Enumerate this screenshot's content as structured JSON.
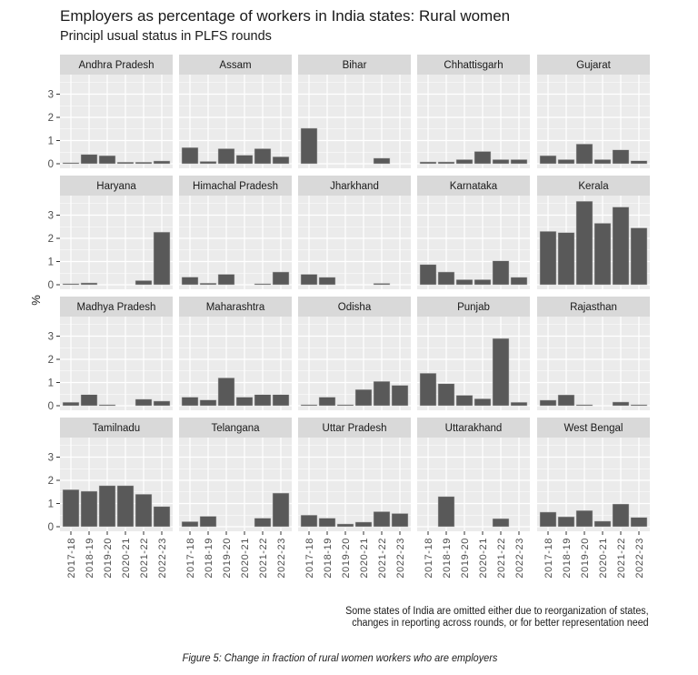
{
  "figure": {
    "title": "Employers as percentage of workers in India states: Rural women",
    "subtitle": "Principl usual status in PLFS rounds",
    "note_lines": [
      "Some states of India are omitted either due to reorganization of states,",
      "changes in reporting across rounds, or for better representation need"
    ],
    "caption": "Figure 5:  Change in fraction of rural women workers who are employers"
  },
  "chart_data": {
    "type": "bar",
    "layout": "facet-grid 4 rows x 5 columns",
    "title": "Employers as percentage of workers in India states: Rural women",
    "subtitle": "Principl usual status in PLFS rounds",
    "xlabel": "",
    "ylabel": "%",
    "ylim": [
      0,
      3.7
    ],
    "yticks": [
      0,
      1,
      2,
      3
    ],
    "grid": true,
    "categories": [
      "2017-18",
      "2018-19",
      "2019-20",
      "2020-21",
      "2021-22",
      "2022-23"
    ],
    "panels": [
      {
        "name": "Andhra Pradesh",
        "values": [
          0.03,
          0.4,
          0.35,
          0.07,
          0.07,
          0.12
        ]
      },
      {
        "name": "Assam",
        "values": [
          0.7,
          0.1,
          0.65,
          0.37,
          0.65,
          0.3
        ]
      },
      {
        "name": "Bihar",
        "values": [
          1.53,
          0,
          0,
          0,
          0.24,
          0
        ]
      },
      {
        "name": "Chhattisgarh",
        "values": [
          0.08,
          0.08,
          0.18,
          0.53,
          0.18,
          0.18
        ]
      },
      {
        "name": "Gujarat",
        "values": [
          0.35,
          0.18,
          0.85,
          0.18,
          0.6,
          0.13
        ]
      },
      {
        "name": "Haryana",
        "values": [
          0.03,
          0.08,
          0,
          0,
          0.18,
          2.27
        ]
      },
      {
        "name": "Himachal Pradesh",
        "values": [
          0.33,
          0.07,
          0.45,
          0,
          0.03,
          0.55
        ]
      },
      {
        "name": "Jharkhand",
        "values": [
          0.45,
          0.32,
          0,
          0,
          0.06,
          0
        ]
      },
      {
        "name": "Karnataka",
        "values": [
          0.87,
          0.55,
          0.22,
          0.22,
          1.03,
          0.32
        ]
      },
      {
        "name": "Kerala",
        "values": [
          2.3,
          2.25,
          3.6,
          2.65,
          3.35,
          2.45
        ]
      },
      {
        "name": "Madhya Pradesh",
        "values": [
          0.15,
          0.48,
          0.03,
          0,
          0.28,
          0.2
        ]
      },
      {
        "name": "Maharashtra",
        "values": [
          0.37,
          0.25,
          1.2,
          0.37,
          0.48,
          0.48
        ]
      },
      {
        "name": "Odisha",
        "values": [
          0.03,
          0.37,
          0.03,
          0.7,
          1.05,
          0.88
        ]
      },
      {
        "name": "Punjab",
        "values": [
          1.4,
          0.95,
          0.45,
          0.3,
          2.9,
          0.15
        ]
      },
      {
        "name": "Rajasthan",
        "values": [
          0.24,
          0.47,
          0.03,
          0,
          0.16,
          0.03
        ]
      },
      {
        "name": "Tamilnadu",
        "values": [
          1.6,
          1.53,
          1.77,
          1.77,
          1.4,
          0.87
        ]
      },
      {
        "name": "Telangana",
        "values": [
          0.22,
          0.45,
          0,
          0,
          0.37,
          1.45
        ]
      },
      {
        "name": "Uttar Pradesh",
        "values": [
          0.5,
          0.37,
          0.12,
          0.2,
          0.65,
          0.57
        ]
      },
      {
        "name": "Uttarakhand",
        "values": [
          0,
          1.3,
          0,
          0,
          0.35,
          0
        ]
      },
      {
        "name": "West Bengal",
        "values": [
          0.63,
          0.43,
          0.7,
          0.24,
          0.98,
          0.4
        ]
      }
    ]
  },
  "colors": {
    "bar": "#595959",
    "panel_bg": "#ebebeb",
    "strip_bg": "#d9d9d9",
    "grid": "#ffffff"
  }
}
